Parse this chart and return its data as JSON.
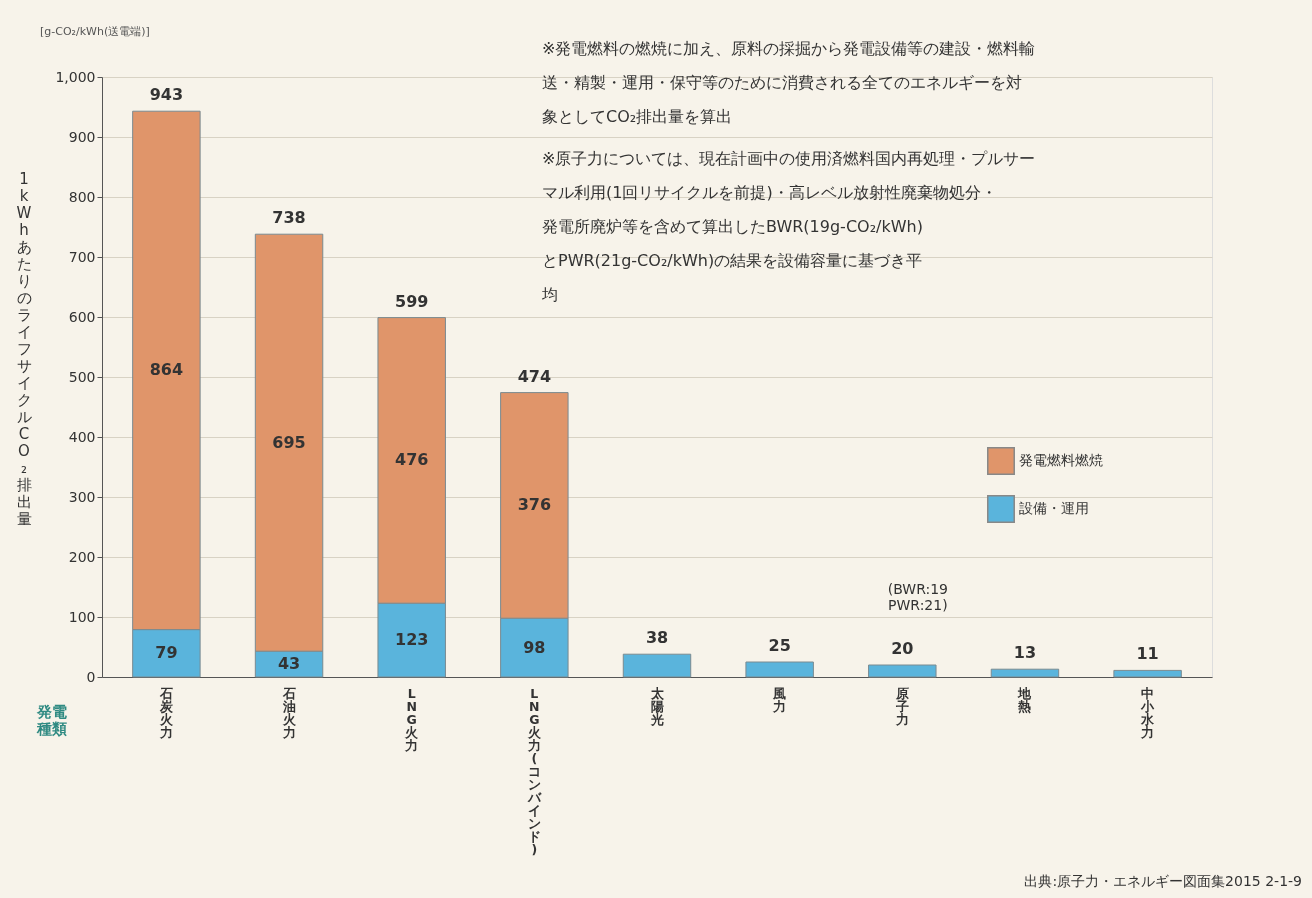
{
  "chart_data": {
    "type": "bar",
    "stacked": true,
    "ylabel": "1kWhあたりのライフサイクルCO₂排出量",
    "xlabel": "発電種類",
    "categories": [
      "石炭火力",
      "石油火力",
      "LNG火力",
      "LNG火力(コンバインド)",
      "太陽光",
      "風力",
      "原子力",
      "地熱",
      "中小水力"
    ],
    "series": [
      {
        "name": "設備・運用",
        "color": "#5ab4dc",
        "values": [
          79,
          43,
          123,
          98,
          38,
          25,
          20,
          13,
          11
        ],
        "value_labels": [
          "79",
          "43",
          "123",
          "98",
          null,
          null,
          null,
          null,
          null
        ]
      },
      {
        "name": "発電燃料燃焼",
        "color": "#e0956a",
        "values": [
          864,
          695,
          476,
          376,
          null,
          null,
          null,
          null,
          null
        ],
        "value_labels": [
          "864",
          "695",
          "476",
          "376",
          null,
          null,
          null,
          null,
          null
        ]
      }
    ],
    "totals": [
      "943",
      "738",
      "599",
      "474",
      "38",
      "25",
      "20",
      "13",
      "11"
    ],
    "ylim": [
      0,
      1000
    ],
    "yticks": [
      0,
      100,
      200,
      300,
      400,
      500,
      600,
      700,
      800,
      900,
      {
        "value": 1000,
        "label": "1,000"
      }
    ],
    "grid": "y",
    "legend": "right",
    "annotations": [
      "[g-CO₂/kWh(送電端)]",
      "※発電燃料の燃焼に加え、原料の採掘から発電設備等の建設・燃料輸送・精製・運用・保守等のために消費される全てのエネルギーを対象としてCO₂排出量を算出",
      "※原子力については、現在計画中の使用済燃料国内再処理・プルサーマル利用(1回リサイクルを前提)・高レベル放射性廃棄物処分・発電所廃炉等を含めて算出したBWR(19g-CO₂/kWh)とPWR(21g-CO₂/kWh)の結果を設備容量に基づき平均",
      "(BWR:19 PWR:21)",
      "出典:原子力・エネルギー図面集2015 2-1-9"
    ]
  }
}
